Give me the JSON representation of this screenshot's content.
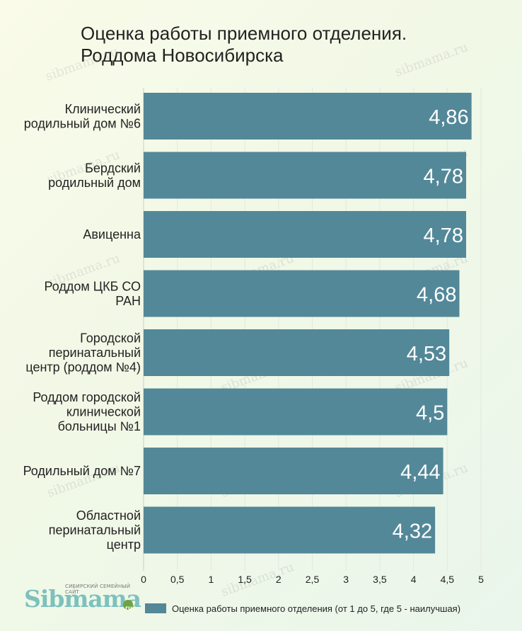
{
  "chart_data": {
    "type": "bar",
    "orientation": "horizontal",
    "title": "Оценка работы приемного отделения. Роддома Новосибирска",
    "title_lines": [
      "Оценка работы приемного отделения.",
      "Роддома Новосибирска"
    ],
    "categories": [
      [
        "Клинический",
        "родильный дом №6"
      ],
      [
        "Бердский",
        "родильный дом"
      ],
      [
        "Авиценна"
      ],
      [
        "Роддом ЦКБ СО",
        "РАН"
      ],
      [
        "Городской",
        "перинатальный",
        "центр (роддом №4)"
      ],
      [
        "Роддом городской",
        "клинической",
        "больницы №1"
      ],
      [
        "Родильный дом №7"
      ],
      [
        "Областной",
        "перинатальный",
        "центр"
      ]
    ],
    "series": [
      {
        "name": "Оценка работы приемного отделения (от 1 до 5, где 5 - наилучшая)",
        "values": [
          4.86,
          4.78,
          4.78,
          4.68,
          4.53,
          4.5,
          4.44,
          4.32
        ],
        "labels": [
          "4,86",
          "4,78",
          "4,78",
          "4,68",
          "4,53",
          "4,5",
          "4,44",
          "4,32"
        ]
      }
    ],
    "xlim": [
      0,
      5
    ],
    "x_ticks": [
      0,
      0.5,
      1,
      1.5,
      2,
      2.5,
      3,
      3.5,
      4,
      4.5,
      5
    ],
    "x_tick_labels": [
      "0",
      "0,5",
      "1",
      "1,5",
      "2",
      "2,5",
      "3",
      "3,5",
      "4",
      "4,5",
      "5"
    ],
    "grid": true,
    "legend_position": "bottom",
    "colors": {
      "bar": "#538898",
      "bar_label": "#ffffff",
      "grid": "#e4e8de",
      "text": "#222222"
    }
  },
  "branding": {
    "logo_word": "Sibmama",
    "logo_tagline": "СИБИРСКИЙ СЕМЕЙНЫЙ САЙТ",
    "logo_suffix": "ru",
    "watermark": "sibmama.ru"
  }
}
